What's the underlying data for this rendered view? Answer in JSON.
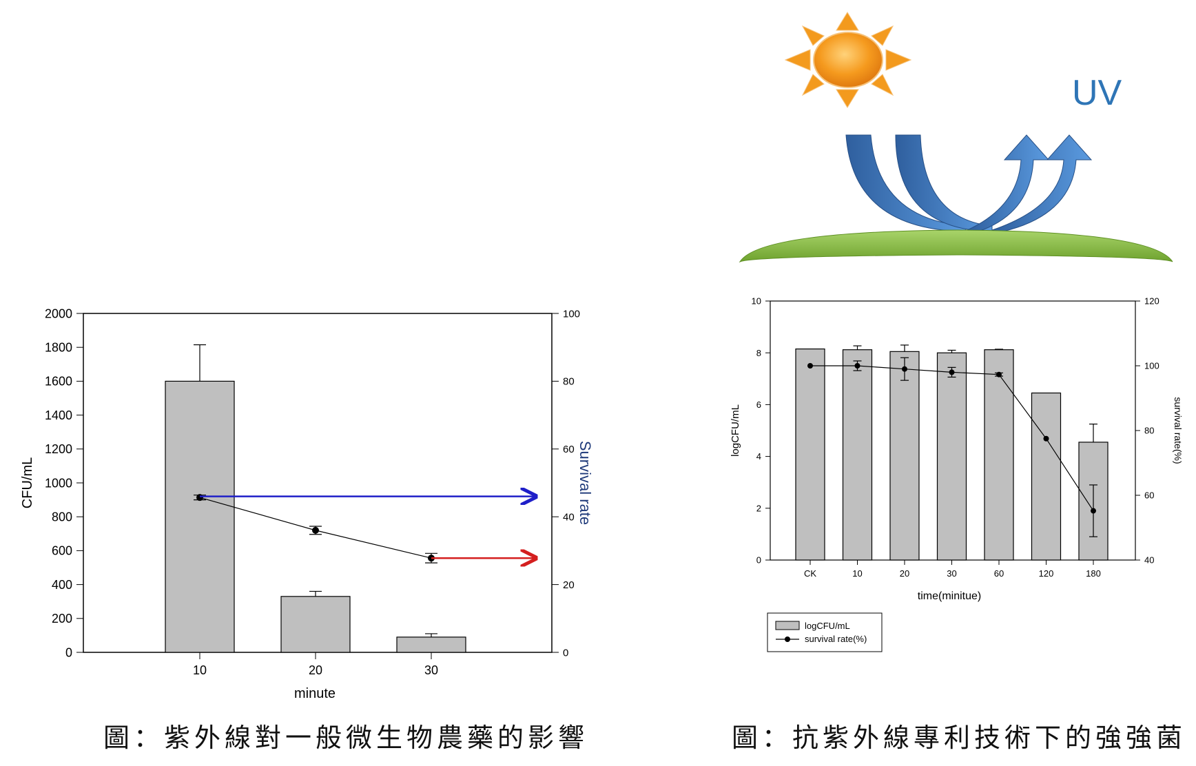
{
  "colors": {
    "bar_fill": "#bfbfbf",
    "axis": "#000000",
    "uv_text": "#2e75b6",
    "blue_arrow": "#1f1fc8",
    "red_arrow": "#d41f1f",
    "sun": "#f39a1e",
    "uv_arrow": "#3d6eb0",
    "ground": "#7fb23a"
  },
  "illustration": {
    "uv_label": "UV",
    "icons": [
      "sun-icon",
      "uv-ray-arrows-icon",
      "ground-surface-icon"
    ]
  },
  "captions": {
    "left": "圖：紫外線對一般微生物農藥的影響",
    "right": "圖：抗紫外線專利技術下的強強菌"
  },
  "chart_data": [
    {
      "type": "bar",
      "title": "",
      "xlabel": "minute",
      "ylabel": "CFU/mL",
      "y2label": "Survival rate",
      "categories": [
        "10",
        "20",
        "30"
      ],
      "ylim": [
        0,
        2000
      ],
      "y2lim": [
        0,
        100
      ],
      "yticks": [
        "0",
        "200",
        "400",
        "600",
        "800",
        "1000",
        "1200",
        "1400",
        "1600",
        "1800",
        "2000"
      ],
      "y2ticks": [
        "0",
        "20",
        "40",
        "60",
        "80",
        "100"
      ],
      "grid": false,
      "series": [
        {
          "kind": "bar",
          "axis": "left",
          "values": [
            1600,
            330,
            90
          ],
          "errors": [
            215,
            30,
            20
          ]
        },
        {
          "kind": "line",
          "axis": "right",
          "values": [
            45.7,
            36,
            27.8
          ],
          "errors": [
            0.7,
            1.2,
            1.4
          ]
        }
      ],
      "annotations": [
        {
          "kind": "arrow",
          "color": "blue",
          "y2": 46,
          "from_category": "10"
        },
        {
          "kind": "arrow",
          "color": "red",
          "y2": 27.8,
          "from_category": "30"
        }
      ]
    },
    {
      "type": "bar",
      "title": "",
      "xlabel": "time(minitue)",
      "ylabel": "logCFU/mL",
      "y2label": "survival rate(%)",
      "categories": [
        "CK",
        "10",
        "20",
        "30",
        "60",
        "120",
        "180"
      ],
      "ylim": [
        0,
        10
      ],
      "y2lim": [
        40,
        120
      ],
      "yticks": [
        "0",
        "2",
        "4",
        "6",
        "8",
        "10"
      ],
      "y2ticks": [
        "40",
        "60",
        "80",
        "100",
        "120"
      ],
      "grid": false,
      "legend_position": "below-left",
      "series": [
        {
          "name": "logCFU/mL",
          "kind": "bar",
          "axis": "left",
          "values": [
            8.15,
            8.12,
            8.05,
            8.0,
            8.12,
            6.45,
            4.55
          ],
          "errors": [
            0,
            0.15,
            0.25,
            0.1,
            0.02,
            0,
            0.7
          ]
        },
        {
          "name": "survival rate(%)",
          "kind": "line",
          "axis": "right",
          "values": [
            100,
            100,
            99,
            98,
            97.3,
            77.5,
            55.2
          ],
          "errors": [
            0,
            1.5,
            3.5,
            1.5,
            0.5,
            0,
            8
          ]
        }
      ]
    }
  ]
}
